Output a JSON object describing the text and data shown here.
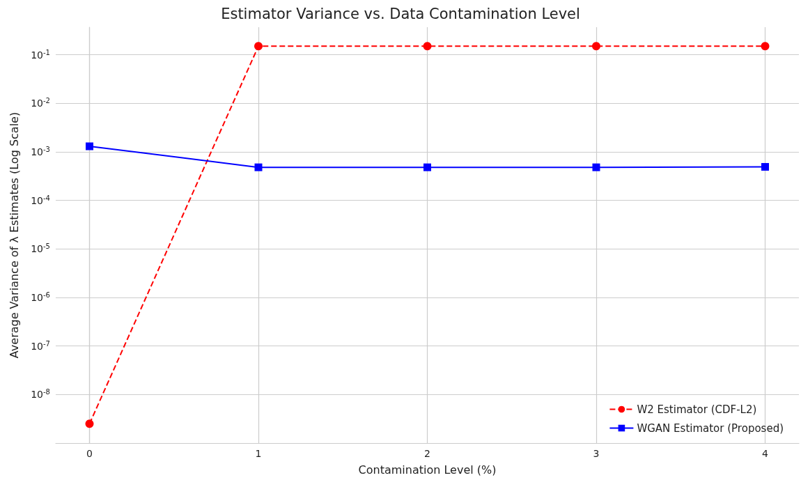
{
  "chart_data": {
    "type": "line",
    "title": "Estimator Variance vs. Data Contamination Level",
    "xlabel": "Contamination Level (%)",
    "ylabel": "Average Variance of λ Estimates (Log Scale)",
    "x": [
      0,
      1,
      2,
      3,
      4
    ],
    "series": [
      {
        "name": "W2 Estimator (CDF-L2)",
        "color": "#ff0000",
        "values": [
          2.5e-09,
          0.15,
          0.15,
          0.15,
          0.15
        ],
        "marker": "circle",
        "line_style": "dashed"
      },
      {
        "name": "WGAN Estimator (Proposed)",
        "color": "#0000ff",
        "values": [
          0.0013,
          0.00048,
          0.00048,
          0.00048,
          0.00049
        ],
        "marker": "square",
        "line_style": "solid"
      }
    ],
    "log": "y",
    "xlim": [
      -0.2,
      4.2
    ],
    "xticks": [
      0,
      1,
      2,
      3,
      4
    ],
    "ylim": [
      1e-09,
      0.37
    ],
    "yticks": [
      {
        "value": 1e-08,
        "label": "10$^{-8}$"
      },
      {
        "value": 1e-07,
        "label": "10$^{-7}$"
      },
      {
        "value": 1e-06,
        "label": "10$^{-6}$"
      },
      {
        "value": 1e-05,
        "label": "10$^{-5}$"
      },
      {
        "value": 0.0001,
        "label": "10$^{-4}$"
      },
      {
        "value": 0.001,
        "label": "10$^{-3}$"
      },
      {
        "value": 0.01,
        "label": "10$^{-2}$"
      },
      {
        "value": 0.1,
        "label": "10$^{-1}$"
      }
    ],
    "grid": true,
    "legend": "bottom right"
  }
}
